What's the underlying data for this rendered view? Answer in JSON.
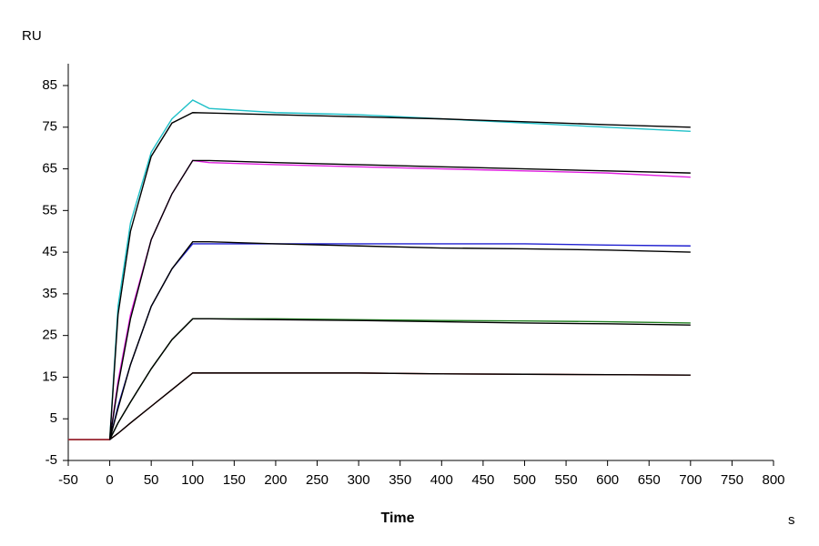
{
  "chart_data": {
    "type": "line",
    "y_label": "RU",
    "x_label": "Time",
    "x_unit": "s",
    "x": [
      -50,
      -25,
      0,
      10,
      25,
      50,
      75,
      100,
      120,
      200,
      300,
      400,
      500,
      600,
      700
    ],
    "series": [
      {
        "color": "#20c0c8",
        "values": [
          0,
          0,
          0,
          32,
          52,
          69,
          77,
          81.5,
          79.5,
          78.5,
          78,
          77,
          76,
          75,
          74
        ]
      },
      {
        "color": "#e020e0",
        "values": [
          0,
          0,
          0,
          14,
          30,
          48,
          59,
          67,
          66.5,
          66,
          65.5,
          65,
          64.5,
          64,
          63
        ]
      },
      {
        "color": "#2020d0",
        "values": [
          0,
          0,
          0,
          8,
          18,
          32,
          41,
          47,
          47,
          47,
          47,
          47,
          47,
          46.7,
          46.5
        ]
      },
      {
        "color": "#208020",
        "values": [
          0,
          0,
          0,
          4,
          9,
          17,
          24,
          29,
          29,
          29,
          28.8,
          28.6,
          28.5,
          28.3,
          28
        ]
      },
      {
        "color": "#c02020",
        "values": [
          0,
          0,
          0,
          1.5,
          4,
          8,
          12,
          16,
          16,
          16,
          16,
          15.8,
          15.7,
          15.6,
          15.5
        ]
      },
      {
        "color": "#000000",
        "values": [
          null,
          null,
          0,
          30,
          50,
          68,
          76,
          78.5,
          78.4,
          78,
          77.5,
          77,
          76.3,
          75.6,
          75
        ]
      },
      {
        "color": "#000000",
        "values": [
          null,
          null,
          0,
          13,
          29,
          48,
          59,
          67,
          67,
          66.5,
          66,
          65.5,
          65,
          64.5,
          64
        ]
      },
      {
        "color": "#000000",
        "values": [
          null,
          null,
          0,
          7.5,
          18,
          32,
          41,
          47.5,
          47.5,
          47,
          46.5,
          46,
          45.8,
          45.5,
          45
        ]
      },
      {
        "color": "#000000",
        "values": [
          null,
          null,
          0,
          4,
          9,
          17,
          24,
          29,
          29,
          28.8,
          28.6,
          28.3,
          28,
          27.8,
          27.5
        ]
      },
      {
        "color": "#000000",
        "values": [
          null,
          null,
          0,
          1.5,
          4,
          8,
          12,
          16,
          16,
          16,
          16,
          15.8,
          15.7,
          15.6,
          15.5
        ]
      }
    ],
    "xlim": [
      -50,
      800
    ],
    "xticks": [
      -50,
      0,
      50,
      100,
      150,
      200,
      250,
      300,
      350,
      400,
      450,
      500,
      550,
      600,
      650,
      700,
      750,
      800
    ],
    "ylim": [
      -5,
      90
    ],
    "yticks": [
      -5,
      5,
      15,
      25,
      35,
      45,
      55,
      65,
      75,
      85
    ]
  }
}
